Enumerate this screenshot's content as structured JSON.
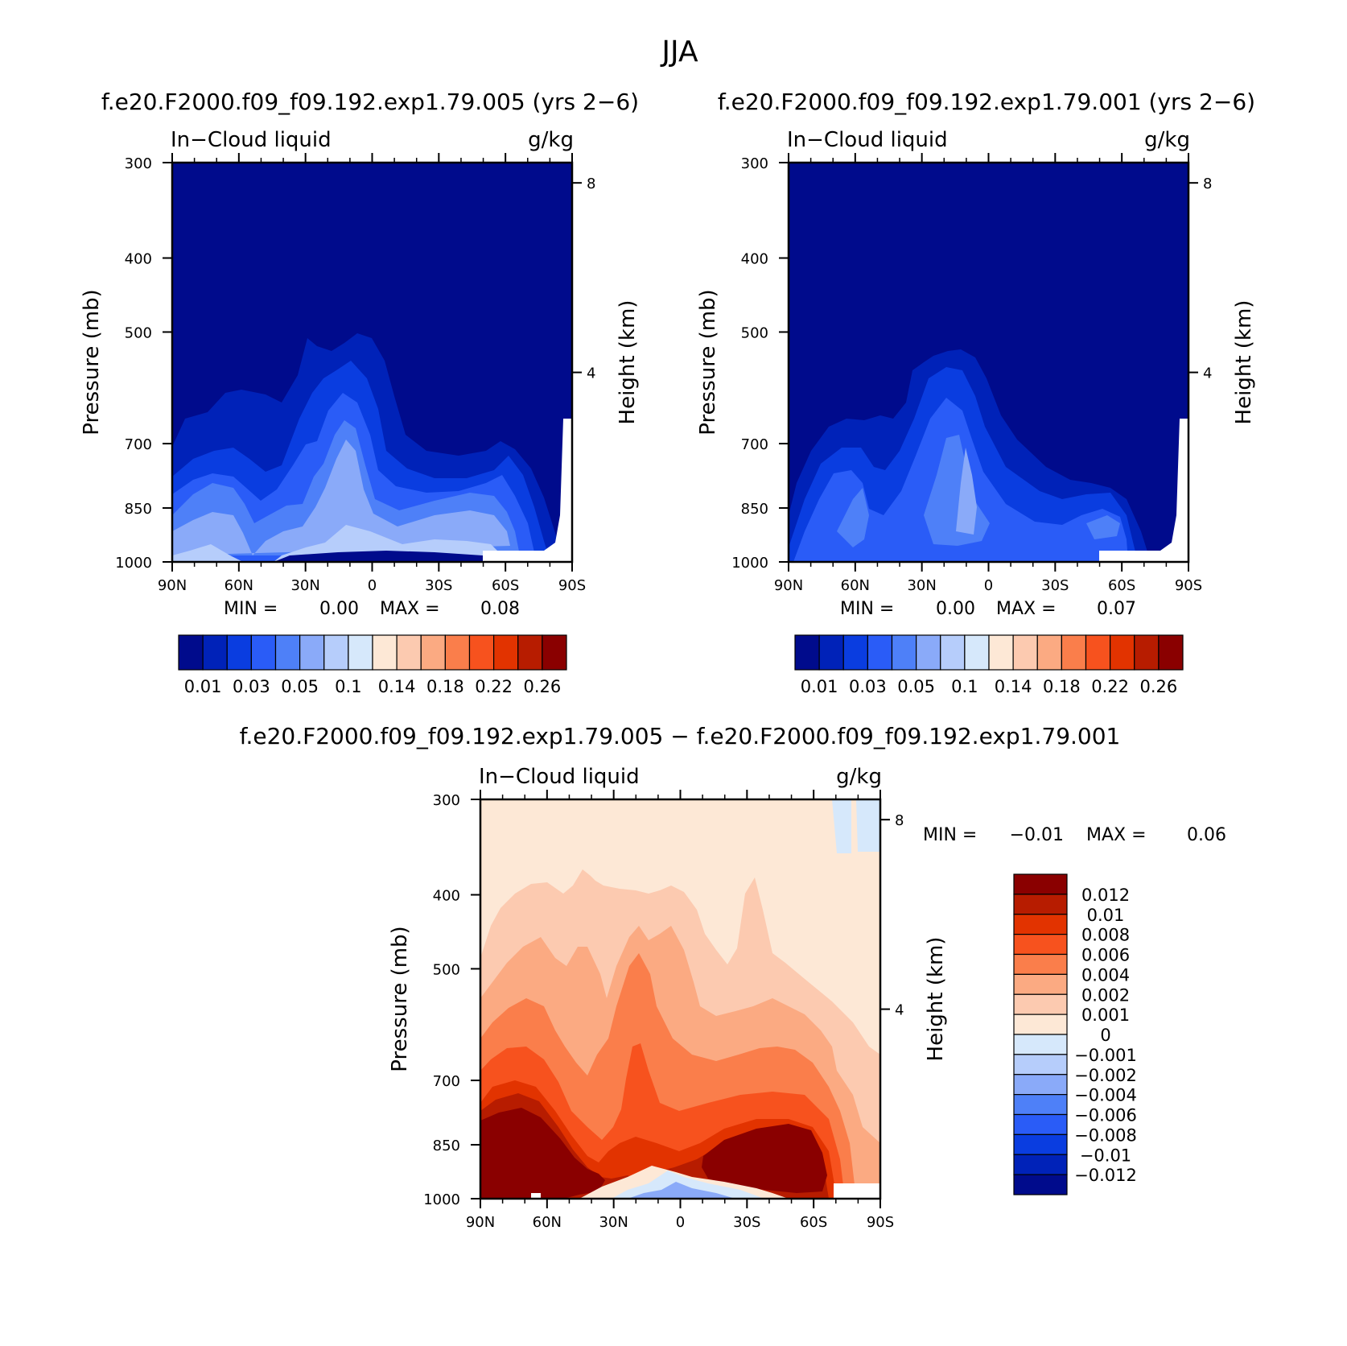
{
  "figure_title": "JJA",
  "chart_data": [
    {
      "id": "panel-left",
      "type": "heatmap",
      "title": "f.e20.F2000.f09_f09.192.exp1.79.005 (yrs 2−6)",
      "variable": "In−Cloud liquid",
      "units": "g/kg",
      "xlabel": "",
      "ylabel": "Pressure (mb)",
      "y2label": "Height (km)",
      "x_ticks": [
        "90N",
        "60N",
        "30N",
        "0",
        "30S",
        "60S",
        "90S"
      ],
      "y_ticks": [
        "300",
        "400",
        "500",
        "700",
        "850",
        "1000"
      ],
      "y2_ticks": [
        "8",
        "4"
      ],
      "stats": {
        "min_label": "MIN =",
        "min": "0.00",
        "max_label": "MAX =",
        "max": "0.08"
      },
      "colorbar_labels": [
        "0.01",
        "0.03",
        "0.05",
        "0.1",
        "0.14",
        "0.18",
        "0.22",
        "0.26"
      ],
      "field_summary": "near-zero above 500 mb; peaks up to ~0.08 g/kg in the boundary layer near the equator and southern mid-latitudes"
    },
    {
      "id": "panel-right",
      "type": "heatmap",
      "title": "f.e20.F2000.f09_f09.192.exp1.79.001 (yrs 2−6)",
      "variable": "In−Cloud liquid",
      "units": "g/kg",
      "xlabel": "",
      "ylabel": "Pressure (mb)",
      "y2label": "Height (km)",
      "x_ticks": [
        "90N",
        "60N",
        "30N",
        "0",
        "30S",
        "60S",
        "90S"
      ],
      "y_ticks": [
        "300",
        "400",
        "500",
        "700",
        "850",
        "1000"
      ],
      "y2_ticks": [
        "8",
        "4"
      ],
      "stats": {
        "min_label": "MIN =",
        "min": "0.00",
        "max_label": "MAX =",
        "max": "0.07"
      },
      "colorbar_labels": [
        "0.01",
        "0.03",
        "0.05",
        "0.1",
        "0.14",
        "0.18",
        "0.22",
        "0.26"
      ],
      "field_summary": "similar structure to left panel with slightly weaker maxima (~0.07 g/kg)"
    },
    {
      "id": "panel-diff",
      "type": "heatmap",
      "title": "f.e20.F2000.f09_f09.192.exp1.79.005 − f.e20.F2000.f09_f09.192.exp1.79.001",
      "variable": "In−Cloud liquid",
      "units": "g/kg",
      "xlabel": "",
      "ylabel": "Pressure (mb)",
      "y2label": "Height (km)",
      "x_ticks": [
        "90N",
        "60N",
        "30N",
        "0",
        "30S",
        "60S",
        "90S"
      ],
      "y_ticks": [
        "300",
        "400",
        "500",
        "700",
        "850",
        "1000"
      ],
      "y2_ticks": [
        "8",
        "4"
      ],
      "stats": {
        "min_label": "MIN =",
        "min": "−0.01",
        "max_label": "MAX =",
        "max": "0.06"
      },
      "colorbar_labels": [
        "0.012",
        "0.01",
        "0.008",
        "0.006",
        "0.004",
        "0.002",
        "0.001",
        "0",
        "−0.001",
        "−0.002",
        "−0.004",
        "−0.006",
        "−0.008",
        "−0.01",
        "−0.012"
      ],
      "field_summary": "positive differences (>0.012) in low levels at northern and southern mid-latitudes; small negative values near surface at equator"
    }
  ],
  "colors": {
    "abs_scale": [
      "#000b8c",
      "#0022b8",
      "#0a3de0",
      "#2a5cf7",
      "#4e80f8",
      "#8aaaf9",
      "#b6cdfb",
      "#d6e8fb",
      "#fde8d6",
      "#fccab0",
      "#fbaa82",
      "#fa7e4b",
      "#f7521e",
      "#e23300",
      "#b71c00",
      "#8a0000"
    ],
    "diff_scale": [
      "#8a0000",
      "#b71c00",
      "#e23300",
      "#f7521e",
      "#fa7e4b",
      "#fbaa82",
      "#fccab0",
      "#fde8d6",
      "#d6e8fb",
      "#b6cdfb",
      "#8aaaf9",
      "#4e80f8",
      "#2a5cf7",
      "#0a3de0",
      "#0022b8",
      "#000b8c"
    ]
  }
}
